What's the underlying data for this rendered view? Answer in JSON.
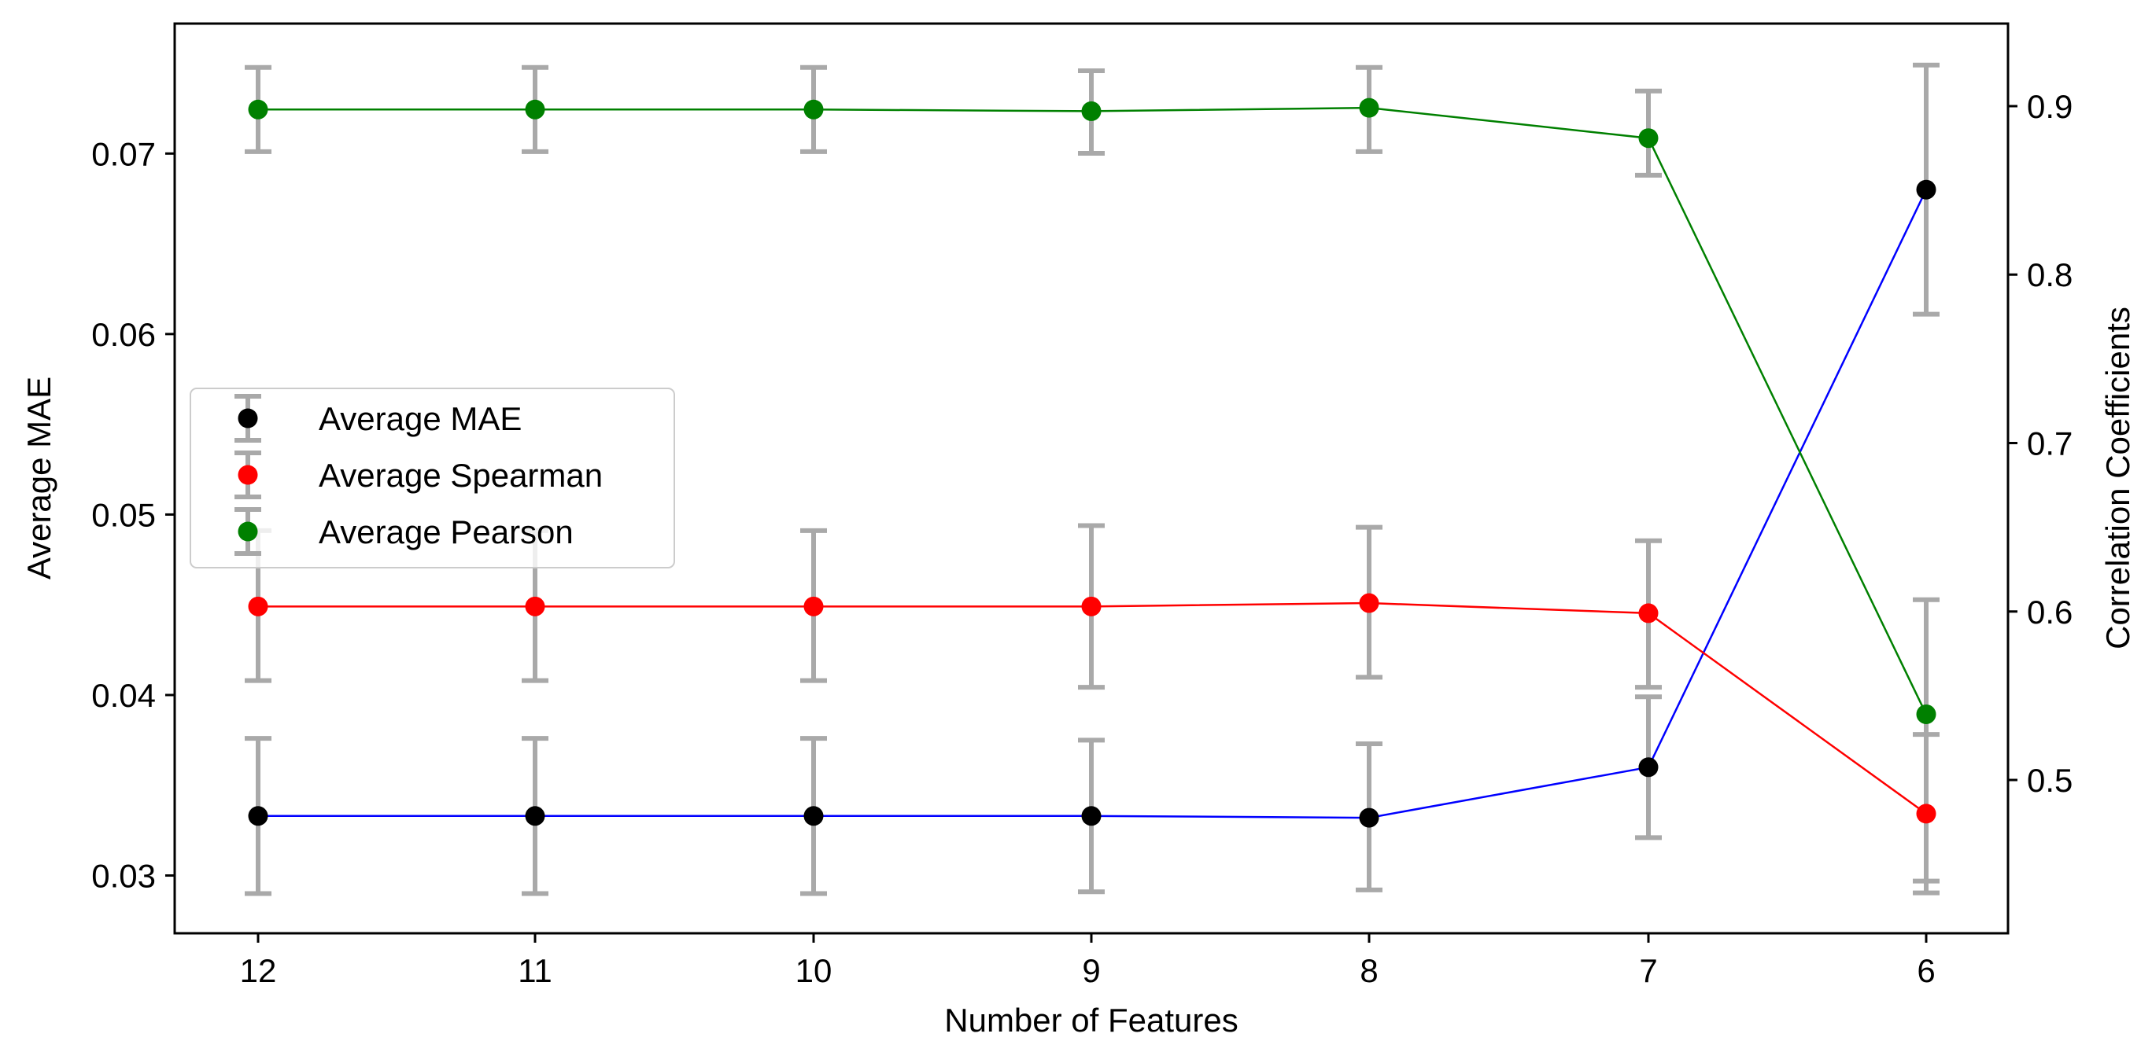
{
  "chart_data": {
    "type": "line",
    "x_categories": [
      "12",
      "11",
      "10",
      "9",
      "8",
      "7",
      "6"
    ],
    "xlabel": "Number of Features",
    "ylabel_left": "Average MAE",
    "ylabel_right": "Correlation Coefficients",
    "ylim_left": [
      0.0268,
      0.0772
    ],
    "ylim_right": [
      0.409,
      0.949
    ],
    "yticks_left": [
      0.03,
      0.04,
      0.05,
      0.06,
      0.07
    ],
    "yticks_right": [
      0.5,
      0.6,
      0.7,
      0.8,
      0.9
    ],
    "yticklabels_left": [
      "0.03",
      "0.04",
      "0.05",
      "0.06",
      "0.07"
    ],
    "yticklabels_right": [
      "0.5",
      "0.6",
      "0.7",
      "0.8",
      "0.9"
    ],
    "grid": false,
    "legend_position": "center-left",
    "errorbar_color": "#a9a9a9",
    "series": [
      {
        "name": "Average MAE",
        "axis": "left",
        "marker_color": "#000000",
        "line_color": "#0000ff",
        "values": [
          0.0333,
          0.0333,
          0.0333,
          0.0333,
          0.0332,
          0.036,
          0.068
        ],
        "err_low": [
          0.029,
          0.029,
          0.029,
          0.0291,
          0.0292,
          0.0321,
          0.0611
        ],
        "err_high": [
          0.0376,
          0.0376,
          0.0376,
          0.0375,
          0.0373,
          0.0399,
          0.0749
        ]
      },
      {
        "name": "Average Spearman",
        "axis": "right",
        "marker_color": "#ff0000",
        "line_color": "#ff0000",
        "values": [
          0.603,
          0.603,
          0.603,
          0.603,
          0.605,
          0.599,
          0.48
        ],
        "err_low": [
          0.559,
          0.559,
          0.559,
          0.555,
          0.561,
          0.555,
          0.433
        ],
        "err_high": [
          0.648,
          0.648,
          0.648,
          0.651,
          0.65,
          0.642,
          0.527
        ]
      },
      {
        "name": "Average Pearson",
        "axis": "right",
        "marker_color": "#008000",
        "line_color": "#008000",
        "values": [
          0.898,
          0.898,
          0.898,
          0.897,
          0.899,
          0.881,
          0.539
        ],
        "err_low": [
          0.873,
          0.873,
          0.873,
          0.872,
          0.873,
          0.859,
          0.44
        ],
        "err_high": [
          0.923,
          0.923,
          0.923,
          0.921,
          0.923,
          0.909,
          0.607
        ]
      }
    ]
  }
}
